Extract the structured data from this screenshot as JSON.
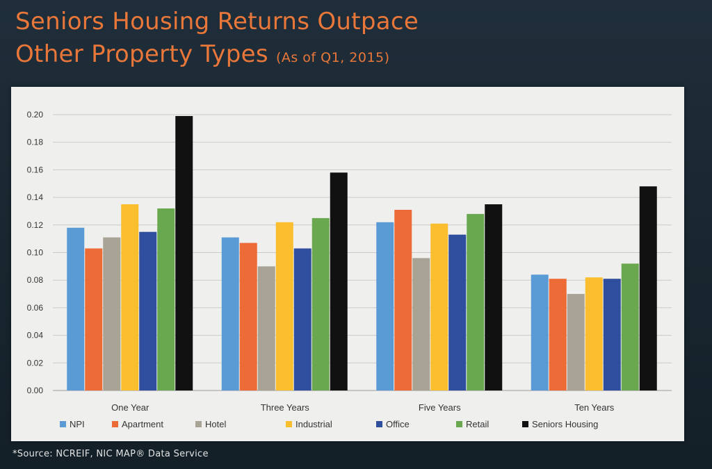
{
  "header": {
    "title_line1": "Seniors Housing Returns Outpace",
    "title_line2": "Other Property Types",
    "subtitle": "(As of Q1, 2015)"
  },
  "source_note": "*Source: NCREIF, NIC MAP® Data Service",
  "chart_data": {
    "type": "bar",
    "title": "Seniors Housing Returns Outpace Other Property Types",
    "subtitle": "(As of Q1, 2015)",
    "xlabel": "",
    "ylabel": "",
    "categories": [
      "One Year",
      "Three Years",
      "Five Years",
      "Ten Years"
    ],
    "ylim": [
      0,
      0.2
    ],
    "yticks": [
      "0.00",
      "0.02",
      "0.04",
      "0.06",
      "0.08",
      "0.10",
      "0.12",
      "0.14",
      "0.16",
      "0.18",
      "0.20"
    ],
    "grid": true,
    "legend_position": "bottom",
    "series": [
      {
        "name": "NPI",
        "color": "#5b9bd5",
        "values": [
          0.118,
          0.111,
          0.122,
          0.084
        ]
      },
      {
        "name": "Apartment",
        "color": "#ed6b36",
        "values": [
          0.103,
          0.107,
          0.131,
          0.081
        ]
      },
      {
        "name": "Hotel",
        "color": "#a8a395",
        "values": [
          0.111,
          0.09,
          0.096,
          0.07
        ]
      },
      {
        "name": "Industrial",
        "color": "#fbbe2e",
        "values": [
          0.135,
          0.122,
          0.121,
          0.082
        ]
      },
      {
        "name": "Office",
        "color": "#2f4f9e",
        "values": [
          0.115,
          0.103,
          0.113,
          0.081
        ]
      },
      {
        "name": "Retail",
        "color": "#6aa84f",
        "values": [
          0.132,
          0.125,
          0.128,
          0.092
        ]
      },
      {
        "name": "Seniors Housing",
        "color": "#111111",
        "values": [
          0.199,
          0.158,
          0.135,
          0.148
        ]
      }
    ]
  }
}
